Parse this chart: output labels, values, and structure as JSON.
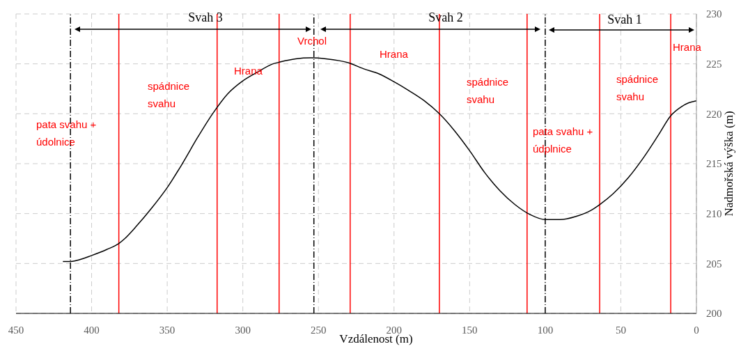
{
  "chart_data": {
    "type": "line",
    "xlabel": "Vzdálenost (m)",
    "ylabel": "Nadmořská výška (m)",
    "xlim": [
      450,
      0
    ],
    "xticks": [
      450,
      400,
      350,
      300,
      250,
      200,
      150,
      100,
      50,
      0
    ],
    "ylim": [
      200,
      230
    ],
    "yticks": [
      200,
      205,
      210,
      215,
      220,
      225,
      230
    ],
    "grid": true,
    "legend": false,
    "marker": "none",
    "line_style": "solid",
    "x": [
      419,
      414,
      410,
      400,
      390,
      382,
      378,
      370,
      360,
      350,
      340,
      330,
      320,
      310,
      300,
      290,
      280,
      275,
      265,
      255,
      245,
      230,
      220,
      210,
      200,
      190,
      180,
      170,
      160,
      150,
      140,
      130,
      120,
      110,
      100,
      90,
      80,
      70,
      64,
      55,
      45,
      35,
      25,
      17,
      10,
      5,
      0
    ],
    "series": [
      {
        "color": "#000000",
        "values": [
          205.2,
          205.2,
          205.3,
          205.8,
          206.4,
          207.0,
          207.5,
          208.8,
          210.6,
          212.6,
          215.0,
          217.6,
          220.0,
          222.0,
          223.3,
          224.2,
          225.0,
          225.2,
          225.5,
          225.6,
          225.5,
          225.1,
          224.5,
          224.0,
          223.2,
          222.3,
          221.3,
          220.0,
          218.3,
          216.3,
          214.1,
          212.3,
          210.9,
          209.9,
          209.4,
          209.4,
          209.7,
          210.3,
          210.9,
          212.0,
          213.6,
          215.6,
          217.9,
          219.8,
          220.7,
          221.1,
          221.3
        ]
      }
    ],
    "ref_lines": [
      {
        "axis": "x",
        "value": 414,
        "color": "#000000",
        "line_style": "dashed"
      },
      {
        "axis": "x",
        "value": 253,
        "color": "#000000",
        "line_style": "dashed"
      },
      {
        "axis": "x",
        "value": 100,
        "color": "#000000",
        "line_style": "dashed"
      },
      {
        "axis": "x",
        "value": 382,
        "color": "#ff0000",
        "line_style": "solid"
      },
      {
        "axis": "x",
        "value": 317,
        "color": "#ff0000",
        "line_style": "solid"
      },
      {
        "axis": "x",
        "value": 276,
        "color": "#ff0000",
        "line_style": "solid"
      },
      {
        "axis": "x",
        "value": 229,
        "color": "#ff0000",
        "line_style": "solid"
      },
      {
        "axis": "x",
        "value": 170,
        "color": "#ff0000",
        "line_style": "solid"
      },
      {
        "axis": "x",
        "value": 112,
        "color": "#ff0000",
        "line_style": "solid"
      },
      {
        "axis": "x",
        "value": 64,
        "color": "#ff0000",
        "line_style": "solid"
      },
      {
        "axis": "x",
        "value": 17,
        "color": "#ff0000",
        "line_style": "solid"
      }
    ],
    "annotations": [
      "Svah 3",
      "Svah 2",
      "Svah 1",
      "pata svahu +\núdolnice",
      "spádnice\nsvahu",
      "Hrana",
      "Vrchol",
      "Hrana",
      "spádnice\nsvahu",
      "pata svahu +\núdplnice",
      "spádnice\nsvahu",
      "Hrana"
    ]
  }
}
